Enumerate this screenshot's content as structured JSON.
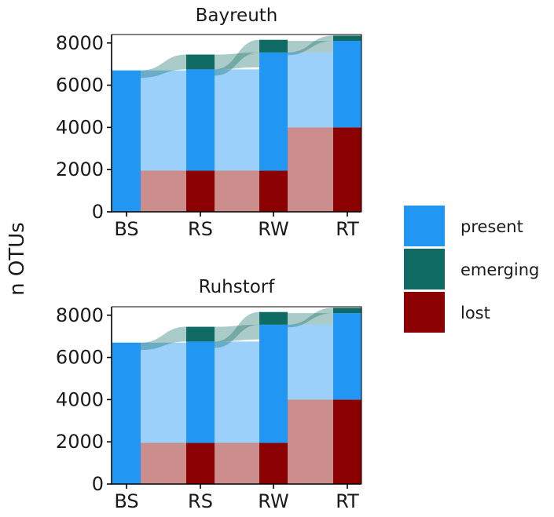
{
  "chart_data": {
    "type": "alluvial",
    "ylabel": "n OTUs",
    "categories": [
      "BS",
      "RS",
      "RW",
      "RT"
    ],
    "ylim": [
      0,
      8400
    ],
    "yticks": [
      0,
      2000,
      4000,
      6000,
      8000
    ],
    "legend": {
      "placement": "right",
      "entries": [
        {
          "label": "present",
          "color": "#2196f3"
        },
        {
          "label": "emerging",
          "color": "#0f6b63"
        },
        {
          "label": "lost",
          "color": "#8b0000"
        }
      ]
    },
    "colors": {
      "present": "#2196f3",
      "emerging": "#0f6b63",
      "lost": "#8b0000"
    },
    "panels": [
      {
        "title": "Bayreuth",
        "stacks": [
          {
            "category": "BS",
            "present": 6700,
            "emerging": 0,
            "lost": 0
          },
          {
            "category": "RS",
            "present": 4800,
            "emerging": 700,
            "lost": 1950
          },
          {
            "category": "RW",
            "present": 5600,
            "emerging": 600,
            "lost": 1950
          },
          {
            "category": "RT",
            "present": 4100,
            "emerging": 250,
            "lost": 4000
          }
        ]
      },
      {
        "title": "Ruhstorf",
        "stacks": [
          {
            "category": "BS",
            "present": 6700,
            "emerging": 0,
            "lost": 0
          },
          {
            "category": "RS",
            "present": 4800,
            "emerging": 700,
            "lost": 1950
          },
          {
            "category": "RW",
            "present": 5600,
            "emerging": 600,
            "lost": 1950
          },
          {
            "category": "RT",
            "present": 4100,
            "emerging": 250,
            "lost": 4000
          }
        ]
      }
    ]
  }
}
